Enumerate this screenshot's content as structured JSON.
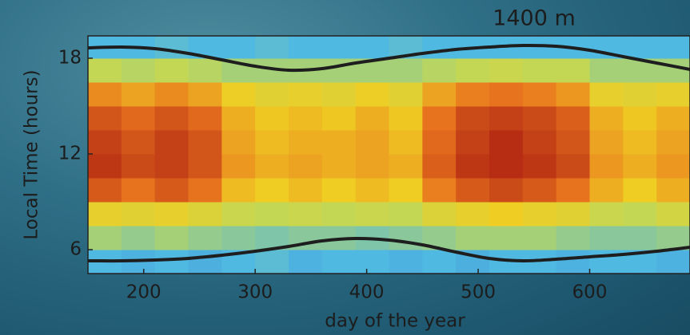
{
  "chart_data": {
    "type": "heatmap",
    "title": "1400 m",
    "xlabel": "day of the year",
    "ylabel": "Local Time (hours)",
    "colormap": "jet",
    "xlim": [
      150,
      690
    ],
    "ylim": [
      4.5,
      19.4
    ],
    "xticks": [
      200,
      300,
      400,
      500,
      600
    ],
    "yticks": [
      6,
      12,
      18
    ],
    "x_edges": [
      150,
      180,
      210,
      240,
      270,
      300,
      330,
      360,
      390,
      420,
      450,
      480,
      510,
      540,
      570,
      600,
      630,
      660,
      690
    ],
    "y_edges": [
      4.5,
      6,
      7.5,
      9,
      10.5,
      12,
      13.5,
      15,
      16.5,
      18,
      19.4
    ],
    "z": [
      [
        0.3,
        0.28,
        0.3,
        0.27,
        0.3,
        0.32,
        0.28,
        0.3,
        0.3,
        0.28,
        0.3,
        0.27,
        0.3,
        0.3,
        0.28,
        0.3,
        0.3,
        0.28
      ],
      [
        0.45,
        0.42,
        0.45,
        0.42,
        0.4,
        0.38,
        0.4,
        0.4,
        0.38,
        0.4,
        0.42,
        0.45,
        0.45,
        0.45,
        0.42,
        0.4,
        0.4,
        0.42
      ],
      [
        0.62,
        0.6,
        0.62,
        0.58,
        0.52,
        0.5,
        0.52,
        0.5,
        0.52,
        0.5,
        0.58,
        0.62,
        0.65,
        0.62,
        0.6,
        0.52,
        0.5,
        0.55
      ],
      [
        0.85,
        0.8,
        0.85,
        0.8,
        0.68,
        0.65,
        0.68,
        0.65,
        0.68,
        0.65,
        0.78,
        0.85,
        0.88,
        0.85,
        0.8,
        0.7,
        0.65,
        0.7
      ],
      [
        0.92,
        0.88,
        0.9,
        0.86,
        0.74,
        0.7,
        0.72,
        0.7,
        0.72,
        0.7,
        0.84,
        0.92,
        0.94,
        0.92,
        0.88,
        0.74,
        0.7,
        0.74
      ],
      [
        0.9,
        0.86,
        0.9,
        0.86,
        0.72,
        0.68,
        0.7,
        0.7,
        0.72,
        0.68,
        0.82,
        0.9,
        0.94,
        0.9,
        0.86,
        0.72,
        0.68,
        0.72
      ],
      [
        0.86,
        0.82,
        0.86,
        0.82,
        0.7,
        0.66,
        0.68,
        0.66,
        0.7,
        0.66,
        0.8,
        0.88,
        0.9,
        0.88,
        0.84,
        0.7,
        0.66,
        0.7
      ],
      [
        0.76,
        0.72,
        0.76,
        0.72,
        0.64,
        0.6,
        0.62,
        0.6,
        0.64,
        0.6,
        0.72,
        0.78,
        0.8,
        0.78,
        0.74,
        0.62,
        0.6,
        0.62
      ],
      [
        0.5,
        0.48,
        0.5,
        0.48,
        0.45,
        0.45,
        0.45,
        0.45,
        0.45,
        0.45,
        0.48,
        0.5,
        0.52,
        0.5,
        0.5,
        0.45,
        0.45,
        0.45
      ],
      [
        0.3,
        0.3,
        0.32,
        0.3,
        0.3,
        0.32,
        0.3,
        0.3,
        0.3,
        0.32,
        0.3,
        0.3,
        0.3,
        0.3,
        0.3,
        0.3,
        0.3,
        0.3
      ]
    ],
    "lines": [
      {
        "color": "#1e1e1e",
        "x": [
          150,
          180,
          210,
          240,
          270,
          300,
          330,
          360,
          390,
          420,
          450,
          480,
          510,
          540,
          570,
          600,
          630,
          660,
          690
        ],
        "values": [
          18.65,
          18.7,
          18.6,
          18.3,
          17.9,
          17.5,
          17.25,
          17.35,
          17.7,
          18.0,
          18.3,
          18.55,
          18.7,
          18.8,
          18.75,
          18.5,
          18.1,
          17.7,
          17.3
        ]
      },
      {
        "color": "#1e1e1e",
        "x": [
          150,
          180,
          210,
          240,
          270,
          300,
          330,
          360,
          390,
          420,
          450,
          480,
          510,
          540,
          570,
          600,
          630,
          660,
          690
        ],
        "values": [
          5.3,
          5.3,
          5.35,
          5.45,
          5.65,
          5.9,
          6.2,
          6.55,
          6.7,
          6.6,
          6.3,
          5.85,
          5.45,
          5.3,
          5.4,
          5.55,
          5.7,
          5.9,
          6.15
        ]
      }
    ]
  }
}
